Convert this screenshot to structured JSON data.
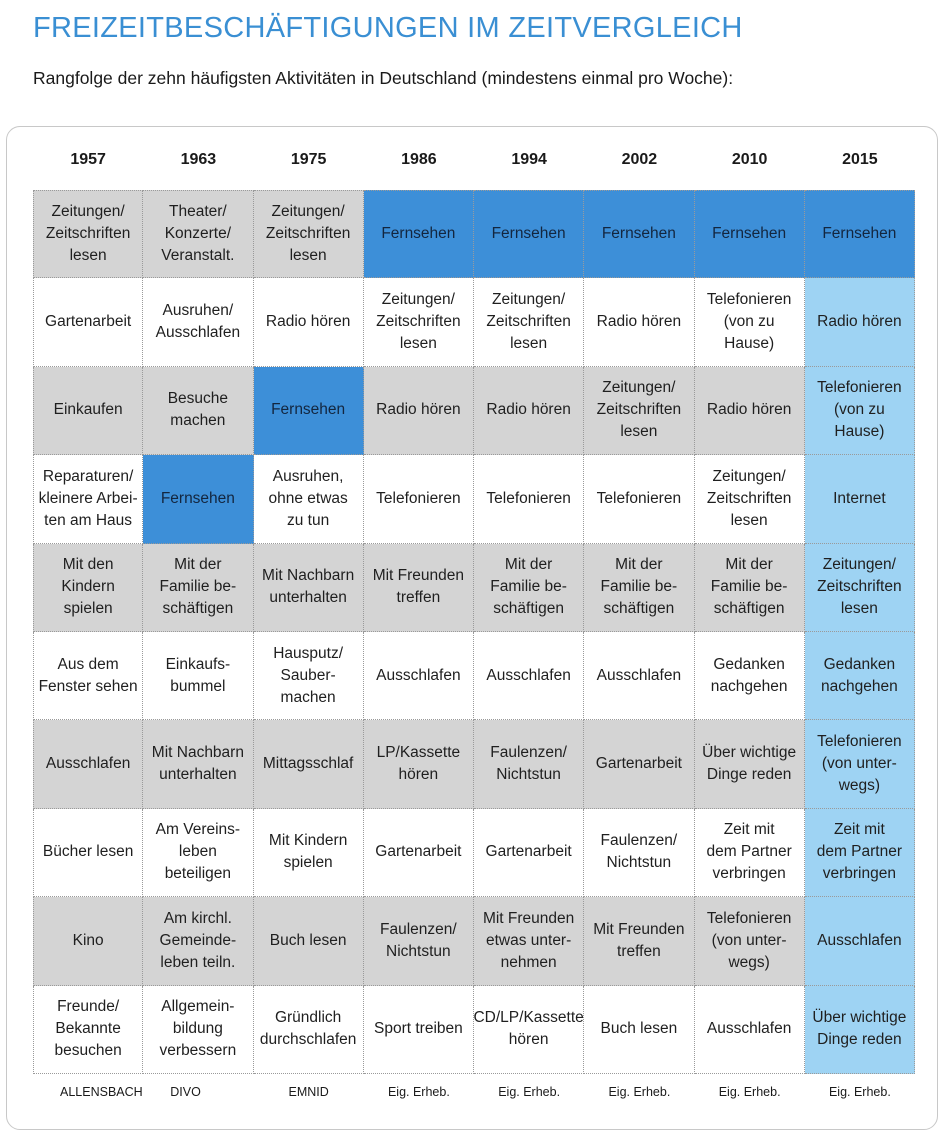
{
  "title": "FREIZEITBESCHÄFTIGUNGEN IM ZEITVERGLEICH",
  "subtitle": "Rangfolge der zehn häufigsten Aktivitäten in Deutschland (mindestens einmal pro Woche):",
  "colors": {
    "title": "#3a8fd3",
    "gray_row": "#d4d4d4",
    "television_highlight": "#3d8fd8",
    "year_2015_column": "#9ed3f3"
  },
  "years": [
    "1957",
    "1963",
    "1975",
    "1986",
    "1994",
    "2002",
    "2010",
    "2015"
  ],
  "rows": [
    {
      "cells": [
        {
          "text": "Zeitungen/\nZeitschriften\nlesen",
          "style": "gray"
        },
        {
          "text": "Theater/\nKonzerte/\nVeranstalt.",
          "style": "gray"
        },
        {
          "text": "Zeitungen/\nZeitschriften\nlesen",
          "style": "gray"
        },
        {
          "text": "Fernsehen",
          "style": "blue"
        },
        {
          "text": "Fernsehen",
          "style": "blue"
        },
        {
          "text": "Fernsehen",
          "style": "blue"
        },
        {
          "text": "Fernsehen",
          "style": "blue"
        },
        {
          "text": "Fernsehen",
          "style": "blue"
        }
      ]
    },
    {
      "cells": [
        {
          "text": "Gartenarbeit",
          "style": "white"
        },
        {
          "text": "Ausruhen/\nAusschlafen",
          "style": "white"
        },
        {
          "text": "Radio hören",
          "style": "white"
        },
        {
          "text": "Zeitungen/\nZeitschriften\nlesen",
          "style": "white"
        },
        {
          "text": "Zeitungen/\nZeitschriften\nlesen",
          "style": "white"
        },
        {
          "text": "Radio hören",
          "style": "white"
        },
        {
          "text": "Telefonieren\n(von zu Hause)",
          "style": "white"
        },
        {
          "text": "Radio hören",
          "style": "light"
        }
      ]
    },
    {
      "cells": [
        {
          "text": "Einkaufen",
          "style": "gray"
        },
        {
          "text": "Besuche\nmachen",
          "style": "gray"
        },
        {
          "text": "Fernsehen",
          "style": "blue"
        },
        {
          "text": "Radio hören",
          "style": "gray"
        },
        {
          "text": "Radio hören",
          "style": "gray"
        },
        {
          "text": "Zeitungen/\nZeitschriften\nlesen",
          "style": "gray"
        },
        {
          "text": "Radio hören",
          "style": "gray"
        },
        {
          "text": "Telefonieren\n(von zu Hause)",
          "style": "light"
        }
      ]
    },
    {
      "cells": [
        {
          "text": "Reparaturen/\nkleinere Arbei-\nten am Haus",
          "style": "white"
        },
        {
          "text": "Fernsehen",
          "style": "blue"
        },
        {
          "text": "Ausruhen,\nohne etwas\nzu tun",
          "style": "white"
        },
        {
          "text": "Telefonieren",
          "style": "white"
        },
        {
          "text": "Telefonieren",
          "style": "white"
        },
        {
          "text": "Telefonieren",
          "style": "white"
        },
        {
          "text": "Zeitungen/\nZeitschriften\nlesen",
          "style": "white"
        },
        {
          "text": "Internet",
          "style": "light"
        }
      ]
    },
    {
      "cells": [
        {
          "text": "Mit den\nKindern\nspielen",
          "style": "gray"
        },
        {
          "text": "Mit der\nFamilie be-\nschäftigen",
          "style": "gray"
        },
        {
          "text": "Mit Nachbarn\nunterhalten",
          "style": "gray"
        },
        {
          "text": "Mit Freunden\ntreffen",
          "style": "gray"
        },
        {
          "text": "Mit der\nFamilie be-\nschäftigen",
          "style": "gray"
        },
        {
          "text": "Mit der\nFamilie be-\nschäftigen",
          "style": "gray"
        },
        {
          "text": "Mit der\nFamilie be-\nschäftigen",
          "style": "gray"
        },
        {
          "text": "Zeitungen/\nZeitschriften\nlesen",
          "style": "light"
        }
      ]
    },
    {
      "cells": [
        {
          "text": "Aus dem\nFenster sehen",
          "style": "white"
        },
        {
          "text": "Einkaufs-\nbummel",
          "style": "white"
        },
        {
          "text": "Hausputz/\nSauber-\nmachen",
          "style": "white"
        },
        {
          "text": "Ausschlafen",
          "style": "white"
        },
        {
          "text": "Ausschlafen",
          "style": "white"
        },
        {
          "text": "Ausschlafen",
          "style": "white"
        },
        {
          "text": "Gedanken\nnachgehen",
          "style": "white"
        },
        {
          "text": "Gedanken\nnachgehen",
          "style": "light"
        }
      ]
    },
    {
      "cells": [
        {
          "text": "Ausschlafen",
          "style": "gray"
        },
        {
          "text": "Mit Nachbarn\nunterhalten",
          "style": "gray"
        },
        {
          "text": "Mittagsschlaf",
          "style": "gray"
        },
        {
          "text": "LP/Kassette\nhören",
          "style": "gray"
        },
        {
          "text": "Faulenzen/\nNichtstun",
          "style": "gray"
        },
        {
          "text": "Gartenarbeit",
          "style": "gray"
        },
        {
          "text": "Über wichtige\nDinge reden",
          "style": "gray"
        },
        {
          "text": "Telefonieren\n(von unter-\nwegs)",
          "style": "light"
        }
      ]
    },
    {
      "cells": [
        {
          "text": "Bücher lesen",
          "style": "white"
        },
        {
          "text": "Am Vereins-\nleben\nbeteiligen",
          "style": "white"
        },
        {
          "text": "Mit Kindern\nspielen",
          "style": "white"
        },
        {
          "text": "Gartenarbeit",
          "style": "white"
        },
        {
          "text": "Gartenarbeit",
          "style": "white"
        },
        {
          "text": "Faulenzen/\nNichtstun",
          "style": "white"
        },
        {
          "text": "Zeit mit\ndem Partner\nverbringen",
          "style": "white"
        },
        {
          "text": "Zeit mit\ndem Partner\nverbringen",
          "style": "light"
        }
      ]
    },
    {
      "cells": [
        {
          "text": "Kino",
          "style": "gray"
        },
        {
          "text": "Am kirchl.\nGemeinde-\nleben teiln.",
          "style": "gray"
        },
        {
          "text": "Buch lesen",
          "style": "gray"
        },
        {
          "text": "Faulenzen/\nNichtstun",
          "style": "gray"
        },
        {
          "text": "Mit Freunden\netwas unter-\nnehmen",
          "style": "gray"
        },
        {
          "text": "Mit Freunden\ntreffen",
          "style": "gray"
        },
        {
          "text": "Telefonieren\n(von unter-\nwegs)",
          "style": "gray"
        },
        {
          "text": "Ausschlafen",
          "style": "light"
        }
      ]
    },
    {
      "cells": [
        {
          "text": "Freunde/\nBekannte\nbesuchen",
          "style": "white"
        },
        {
          "text": "Allgemein-\nbildung\nverbessern",
          "style": "white"
        },
        {
          "text": "Gründlich\ndurchschlafen",
          "style": "white"
        },
        {
          "text": "Sport treiben",
          "style": "white"
        },
        {
          "text": "CD/LP/Kassette\nhören",
          "style": "white"
        },
        {
          "text": "Buch lesen",
          "style": "white"
        },
        {
          "text": "Ausschlafen",
          "style": "white"
        },
        {
          "text": "Über wichtige\nDinge reden",
          "style": "light"
        }
      ]
    }
  ],
  "sources": [
    "ALLENSBACH",
    "DIVO",
    "EMNID",
    "Eig. Erheb.",
    "Eig. Erheb.",
    "Eig. Erheb.",
    "Eig. Erheb.",
    "Eig. Erheb."
  ]
}
